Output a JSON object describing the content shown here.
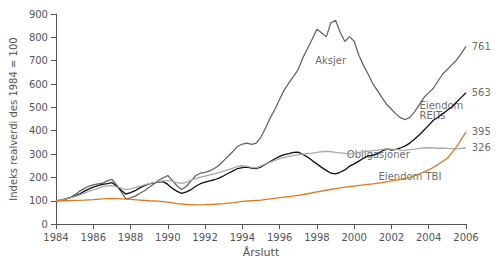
{
  "chart_data": {
    "type": "line",
    "xlabel": "Årslutt",
    "ylabel": "Indeks realverdi des 1984 = 100",
    "xlim": [
      1984,
      2006
    ],
    "ylim": [
      0,
      900
    ],
    "xticks": [
      1984,
      1986,
      1988,
      1990,
      1992,
      1994,
      1996,
      1998,
      2000,
      2002,
      2004,
      2006
    ],
    "yticks": [
      0,
      100,
      200,
      300,
      400,
      500,
      600,
      700,
      800,
      900
    ],
    "grid": false,
    "series": [
      {
        "name": "Aksjer",
        "color": "#666666",
        "x": [
          1984,
          1984.25,
          1984.5,
          1984.75,
          1985,
          1985.25,
          1985.5,
          1985.75,
          1986,
          1986.25,
          1986.5,
          1986.75,
          1987,
          1987.25,
          1987.5,
          1987.75,
          1988,
          1988.25,
          1988.5,
          1988.75,
          1989,
          1989.25,
          1989.5,
          1989.75,
          1990,
          1990.25,
          1990.5,
          1990.75,
          1991,
          1991.25,
          1991.5,
          1991.75,
          1992,
          1992.25,
          1992.5,
          1992.75,
          1993,
          1993.25,
          1993.5,
          1993.75,
          1994,
          1994.25,
          1994.5,
          1994.75,
          1995,
          1995.25,
          1995.5,
          1995.75,
          1996,
          1996.25,
          1996.5,
          1996.75,
          1997,
          1997.25,
          1997.5,
          1997.75,
          1998,
          1998.25,
          1998.5,
          1998.75,
          1999,
          1999.25,
          1999.5,
          1999.75,
          2000,
          2000.25,
          2000.5,
          2000.75,
          2001,
          2001.25,
          2001.5,
          2001.75,
          2002,
          2002.25,
          2002.5,
          2002.75,
          2003,
          2003.25,
          2003.5,
          2003.75,
          2004,
          2004.25,
          2004.5,
          2004.75,
          2005,
          2005.25,
          2005.5,
          2005.75,
          2006
        ],
        "values": [
          100,
          102,
          106,
          112,
          125,
          140,
          152,
          162,
          168,
          172,
          175,
          185,
          192,
          168,
          138,
          108,
          112,
          120,
          132,
          143,
          158,
          172,
          188,
          198,
          208,
          186,
          163,
          148,
          162,
          185,
          208,
          218,
          222,
          228,
          238,
          252,
          272,
          292,
          312,
          333,
          343,
          347,
          342,
          347,
          373,
          413,
          455,
          492,
          535,
          575,
          605,
          633,
          663,
          713,
          752,
          793,
          835,
          820,
          802,
          862,
          873,
          822,
          782,
          803,
          783,
          723,
          680,
          642,
          601,
          572,
          541,
          512,
          492,
          471,
          455,
          448,
          458,
          482,
          512,
          543,
          562,
          582,
          613,
          643,
          662,
          683,
          703,
          731,
          761
        ]
      },
      {
        "name": "Eiendom\nREITs",
        "color": "#111111",
        "x": [
          1984,
          1984.25,
          1984.5,
          1984.75,
          1985,
          1985.25,
          1985.5,
          1985.75,
          1986,
          1986.25,
          1986.5,
          1986.75,
          1987,
          1987.25,
          1987.5,
          1987.75,
          1988,
          1988.25,
          1988.5,
          1988.75,
          1989,
          1989.25,
          1989.5,
          1989.75,
          1990,
          1990.25,
          1990.5,
          1990.75,
          1991,
          1991.25,
          1991.5,
          1991.75,
          1992,
          1992.25,
          1992.5,
          1992.75,
          1993,
          1993.25,
          1993.5,
          1993.75,
          1994,
          1994.25,
          1994.5,
          1994.75,
          1995,
          1995.25,
          1995.5,
          1995.75,
          1996,
          1996.25,
          1996.5,
          1996.75,
          1997,
          1997.25,
          1997.5,
          1997.75,
          1998,
          1998.25,
          1998.5,
          1998.75,
          1999,
          1999.25,
          1999.5,
          1999.75,
          2000,
          2000.25,
          2000.5,
          2000.75,
          2001,
          2001.25,
          2001.5,
          2001.75,
          2002,
          2002.25,
          2002.5,
          2002.75,
          2003,
          2003.25,
          2003.5,
          2003.75,
          2004,
          2004.25,
          2004.5,
          2004.75,
          2005,
          2005.25,
          2005.5,
          2005.75,
          2006
        ],
        "values": [
          100,
          103,
          108,
          113,
          120,
          128,
          140,
          150,
          158,
          165,
          170,
          173,
          178,
          163,
          145,
          128,
          135,
          143,
          155,
          165,
          172,
          177,
          180,
          182,
          170,
          153,
          140,
          132,
          138,
          148,
          162,
          173,
          180,
          185,
          190,
          197,
          207,
          218,
          228,
          238,
          242,
          244,
          240,
          238,
          245,
          257,
          268,
          280,
          290,
          298,
          302,
          307,
          308,
          298,
          287,
          272,
          258,
          243,
          230,
          218,
          215,
          222,
          232,
          248,
          258,
          270,
          282,
          292,
          295,
          302,
          313,
          322,
          317,
          320,
          327,
          335,
          348,
          365,
          383,
          403,
          423,
          445,
          458,
          473,
          488,
          503,
          523,
          543,
          563
        ]
      },
      {
        "name": "Obligasjoner",
        "color": "#aaaaaa",
        "x": [
          1984,
          1984.25,
          1984.5,
          1984.75,
          1985,
          1985.25,
          1985.5,
          1985.75,
          1986,
          1986.25,
          1986.5,
          1986.75,
          1987,
          1987.25,
          1987.5,
          1987.75,
          1988,
          1988.25,
          1988.5,
          1988.75,
          1989,
          1989.25,
          1989.5,
          1989.75,
          1990,
          1990.25,
          1990.5,
          1990.75,
          1991,
          1991.25,
          1991.5,
          1991.75,
          1992,
          1992.25,
          1992.5,
          1992.75,
          1993,
          1993.25,
          1993.5,
          1993.75,
          1994,
          1994.25,
          1994.5,
          1994.75,
          1995,
          1995.25,
          1995.5,
          1995.75,
          1996,
          1996.25,
          1996.5,
          1996.75,
          1997,
          1997.25,
          1997.5,
          1997.75,
          1998,
          1998.25,
          1998.5,
          1998.75,
          1999,
          1999.25,
          1999.5,
          1999.75,
          2000,
          2000.25,
          2000.5,
          2000.75,
          2001,
          2001.25,
          2001.5,
          2001.75,
          2002,
          2002.25,
          2002.5,
          2002.75,
          2003,
          2003.25,
          2003.5,
          2003.75,
          2004,
          2004.25,
          2004.5,
          2004.75,
          2005,
          2005.25,
          2005.5,
          2005.75,
          2006
        ],
        "values": [
          100,
          103,
          107,
          112,
          118,
          124,
          132,
          140,
          147,
          153,
          160,
          164,
          165,
          160,
          154,
          148,
          151,
          156,
          162,
          168,
          173,
          178,
          182,
          185,
          187,
          183,
          178,
          174,
          180,
          188,
          195,
          201,
          206,
          211,
          215,
          220,
          228,
          233,
          240,
          247,
          250,
          247,
          243,
          241,
          249,
          258,
          265,
          273,
          280,
          286,
          290,
          294,
          298,
          300,
          302,
          304,
          307,
          310,
          312,
          310,
          307,
          305,
          303,
          301,
          303,
          307,
          309,
          312,
          315,
          317,
          320,
          322,
          321,
          320,
          317,
          316,
          319,
          321,
          324,
          326,
          327,
          326,
          325,
          325,
          324,
          323,
          322,
          324,
          326
        ]
      },
      {
        "name": "Eiendom TBI",
        "color": "#e07820",
        "x": [
          1984,
          1984.5,
          1985,
          1985.5,
          1986,
          1986.5,
          1987,
          1987.5,
          1988,
          1988.5,
          1989,
          1989.5,
          1990,
          1990.5,
          1991,
          1991.5,
          1992,
          1992.5,
          1993,
          1993.5,
          1994,
          1994.5,
          1995,
          1995.5,
          1996,
          1996.5,
          1997,
          1997.5,
          1998,
          1998.5,
          1999,
          1999.5,
          2000,
          2000.5,
          2001,
          2001.5,
          2002,
          2002.5,
          2003,
          2003.5,
          2004,
          2004.5,
          2005,
          2005.5,
          2006
        ],
        "values": [
          100,
          100,
          102,
          103,
          105,
          108,
          110,
          108,
          106,
          103,
          100,
          98,
          94,
          88,
          84,
          82,
          83,
          85,
          88,
          92,
          97,
          100,
          103,
          108,
          113,
          118,
          123,
          130,
          138,
          145,
          152,
          158,
          163,
          168,
          172,
          178,
          185,
          192,
          200,
          215,
          232,
          255,
          282,
          332,
          395
        ]
      }
    ],
    "annotations": [
      {
        "text": "761",
        "x": 2006.2,
        "y": 761
      },
      {
        "text": "563",
        "x": 2006.2,
        "y": 563
      },
      {
        "text": "326",
        "x": 2006.2,
        "y": 326
      },
      {
        "text": "395",
        "x": 2006.2,
        "y": 395
      },
      {
        "text": "Aksjer",
        "x": 1997.8,
        "y": 700
      },
      {
        "text": "Eiendom\nREITs",
        "x": 2003.4,
        "y": 488
      },
      {
        "text": "Obligasjoner",
        "x": 1999.5,
        "y": 298
      },
      {
        "text": "Eiendom TBI",
        "x": 2001.2,
        "y": 205
      }
    ]
  }
}
